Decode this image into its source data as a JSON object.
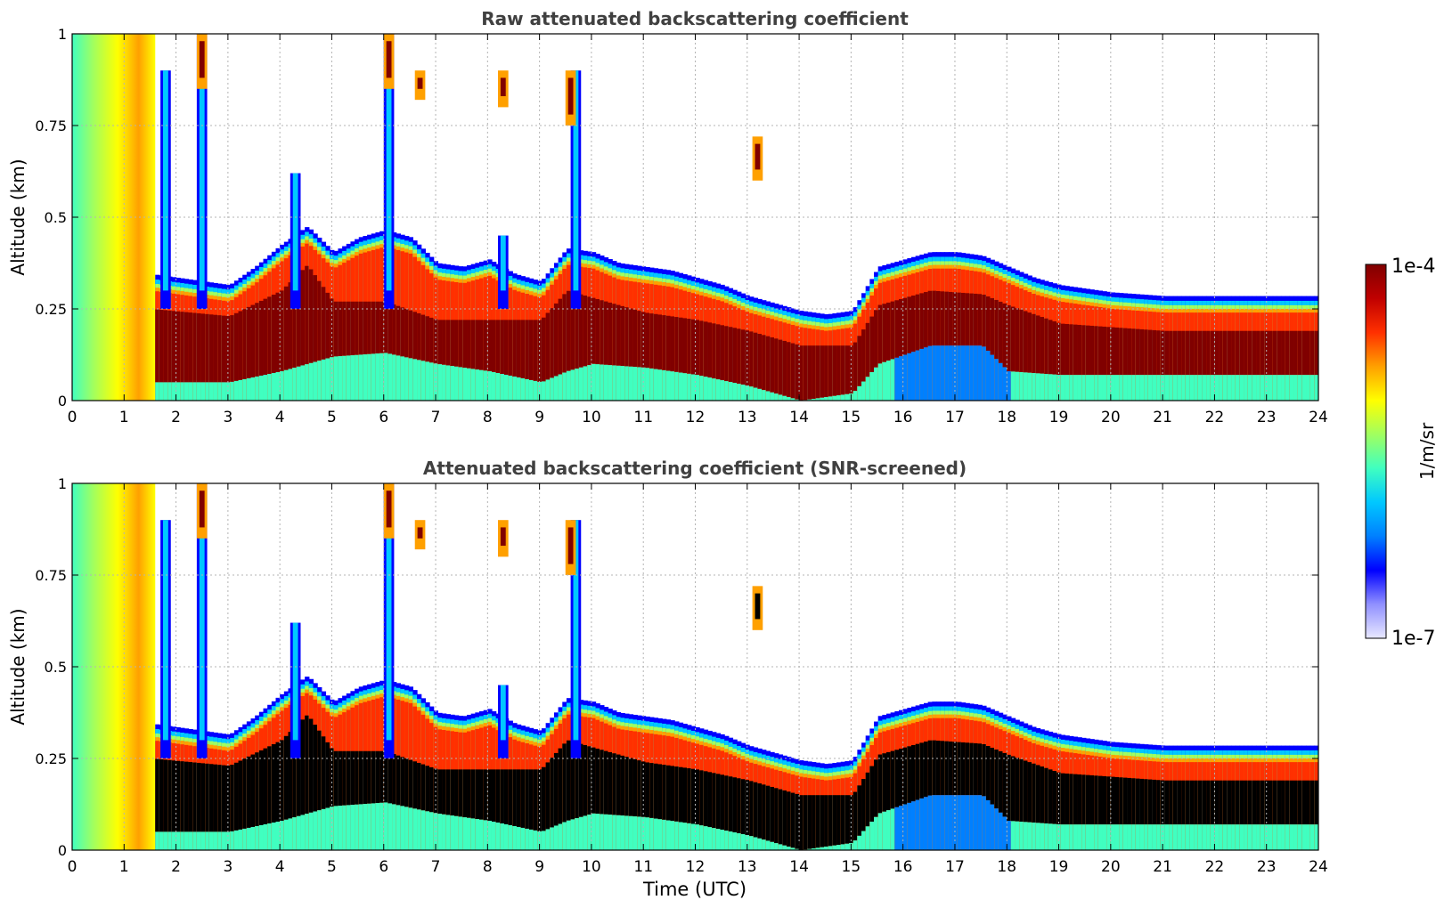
{
  "chart_data": [
    {
      "type": "heatmap",
      "title": "Raw attenuated backscattering coefficient",
      "ylabel": "Altitude (km)",
      "xlabel": "",
      "x_ticks": [
        "0",
        "1",
        "2",
        "3",
        "4",
        "5",
        "6",
        "7",
        "8",
        "9",
        "10",
        "11",
        "12",
        "13",
        "14",
        "15",
        "16",
        "17",
        "18",
        "19",
        "20",
        "21",
        "22",
        "23",
        "24"
      ],
      "y_ticks": [
        "0",
        "0.25",
        "0.5",
        "0.75",
        "1"
      ],
      "xlim": [
        0,
        24
      ],
      "ylim": [
        0,
        1
      ],
      "grid": true,
      "mixing_layer_top_km": [
        [
          1.5,
          0.3
        ],
        [
          2,
          0.29
        ],
        [
          2.5,
          0.28
        ],
        [
          3,
          0.27
        ],
        [
          3.5,
          0.32
        ],
        [
          4,
          0.38
        ],
        [
          4.5,
          0.43
        ],
        [
          5,
          0.36
        ],
        [
          5.5,
          0.4
        ],
        [
          6,
          0.42
        ],
        [
          6.5,
          0.4
        ],
        [
          7,
          0.33
        ],
        [
          7.5,
          0.32
        ],
        [
          8,
          0.34
        ],
        [
          8.5,
          0.3
        ],
        [
          9,
          0.28
        ],
        [
          9.5,
          0.37
        ],
        [
          10,
          0.36
        ],
        [
          10.5,
          0.33
        ],
        [
          11,
          0.32
        ],
        [
          11.5,
          0.31
        ],
        [
          12,
          0.29
        ],
        [
          12.5,
          0.27
        ],
        [
          13,
          0.24
        ],
        [
          13.5,
          0.22
        ],
        [
          14,
          0.2
        ],
        [
          14.5,
          0.19
        ],
        [
          15,
          0.2
        ],
        [
          15.5,
          0.32
        ],
        [
          16,
          0.34
        ],
        [
          16.5,
          0.36
        ],
        [
          17,
          0.36
        ],
        [
          17.5,
          0.35
        ],
        [
          18,
          0.32
        ],
        [
          18.5,
          0.29
        ],
        [
          19,
          0.27
        ],
        [
          19.5,
          0.26
        ],
        [
          20,
          0.25
        ],
        [
          21,
          0.24
        ],
        [
          22,
          0.24
        ],
        [
          23,
          0.24
        ],
        [
          24,
          0.24
        ]
      ],
      "strong_layer_km": [
        [
          1.5,
          0.05,
          0.25
        ],
        [
          3,
          0.05,
          0.23
        ],
        [
          4,
          0.08,
          0.3
        ],
        [
          4.5,
          0.1,
          0.37
        ],
        [
          5,
          0.12,
          0.27
        ],
        [
          6,
          0.13,
          0.27
        ],
        [
          7,
          0.1,
          0.22
        ],
        [
          8,
          0.08,
          0.22
        ],
        [
          9,
          0.05,
          0.22
        ],
        [
          9.5,
          0.08,
          0.3
        ],
        [
          10,
          0.1,
          0.28
        ],
        [
          11,
          0.09,
          0.24
        ],
        [
          12,
          0.07,
          0.22
        ],
        [
          13,
          0.04,
          0.19
        ],
        [
          14,
          0.0,
          0.15
        ],
        [
          15,
          0.02,
          0.15
        ],
        [
          15.5,
          0.1,
          0.26
        ],
        [
          16.5,
          0.15,
          0.3
        ],
        [
          17.5,
          0.15,
          0.29
        ],
        [
          18,
          0.08,
          0.26
        ],
        [
          19,
          0.07,
          0.21
        ],
        [
          21,
          0.07,
          0.19
        ],
        [
          24,
          0.07,
          0.19
        ]
      ]
    },
    {
      "type": "heatmap",
      "title": "Attenuated backscattering coefficient (SNR-screened)",
      "ylabel": "Altitude (km)",
      "xlabel": "Time (UTC)",
      "x_ticks": [
        "0",
        "1",
        "2",
        "3",
        "4",
        "5",
        "6",
        "7",
        "8",
        "9",
        "10",
        "11",
        "12",
        "13",
        "14",
        "15",
        "16",
        "17",
        "18",
        "19",
        "20",
        "21",
        "22",
        "23",
        "24"
      ],
      "y_ticks": [
        "0",
        "0.25",
        "0.5",
        "0.75",
        "1"
      ],
      "xlim": [
        0,
        24
      ],
      "ylim": [
        0,
        1
      ],
      "grid": true,
      "saturated_color": "#000000"
    }
  ],
  "colorbar": {
    "label": "1/m/sr",
    "max_label": "1e-4",
    "min_label": "1e-7",
    "scale": "log",
    "colormap": "jet",
    "colors": [
      "#e8e8ff",
      "#9090ff",
      "#0000ff",
      "#0080ff",
      "#00c8ff",
      "#40ffc0",
      "#a0ff60",
      "#ffff00",
      "#ffa000",
      "#ff3000",
      "#c00000",
      "#800000"
    ]
  },
  "colors": {
    "title": "#404040",
    "grid": "#b4b4b4",
    "background": "#ffffff"
  }
}
